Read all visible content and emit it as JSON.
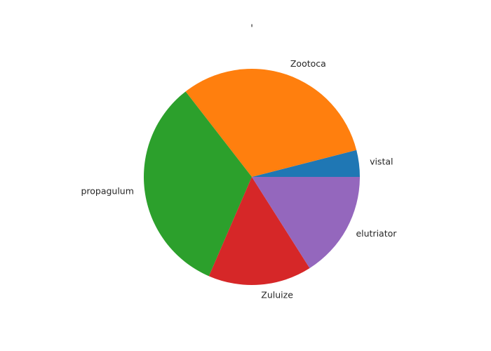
{
  "chart_data": {
    "type": "pie",
    "title": "'",
    "categories": [
      "vistal",
      "Zootoca",
      "propagulum",
      "Zuluize",
      "elutriator"
    ],
    "values": [
      4,
      31.5,
      33,
      15.5,
      16
    ],
    "colors": [
      "#1f77b4",
      "#ff7f0e",
      "#2ca02c",
      "#d62728",
      "#9467bd"
    ],
    "start_angle_deg": 0,
    "direction": "counterclockwise",
    "legend": "none"
  }
}
